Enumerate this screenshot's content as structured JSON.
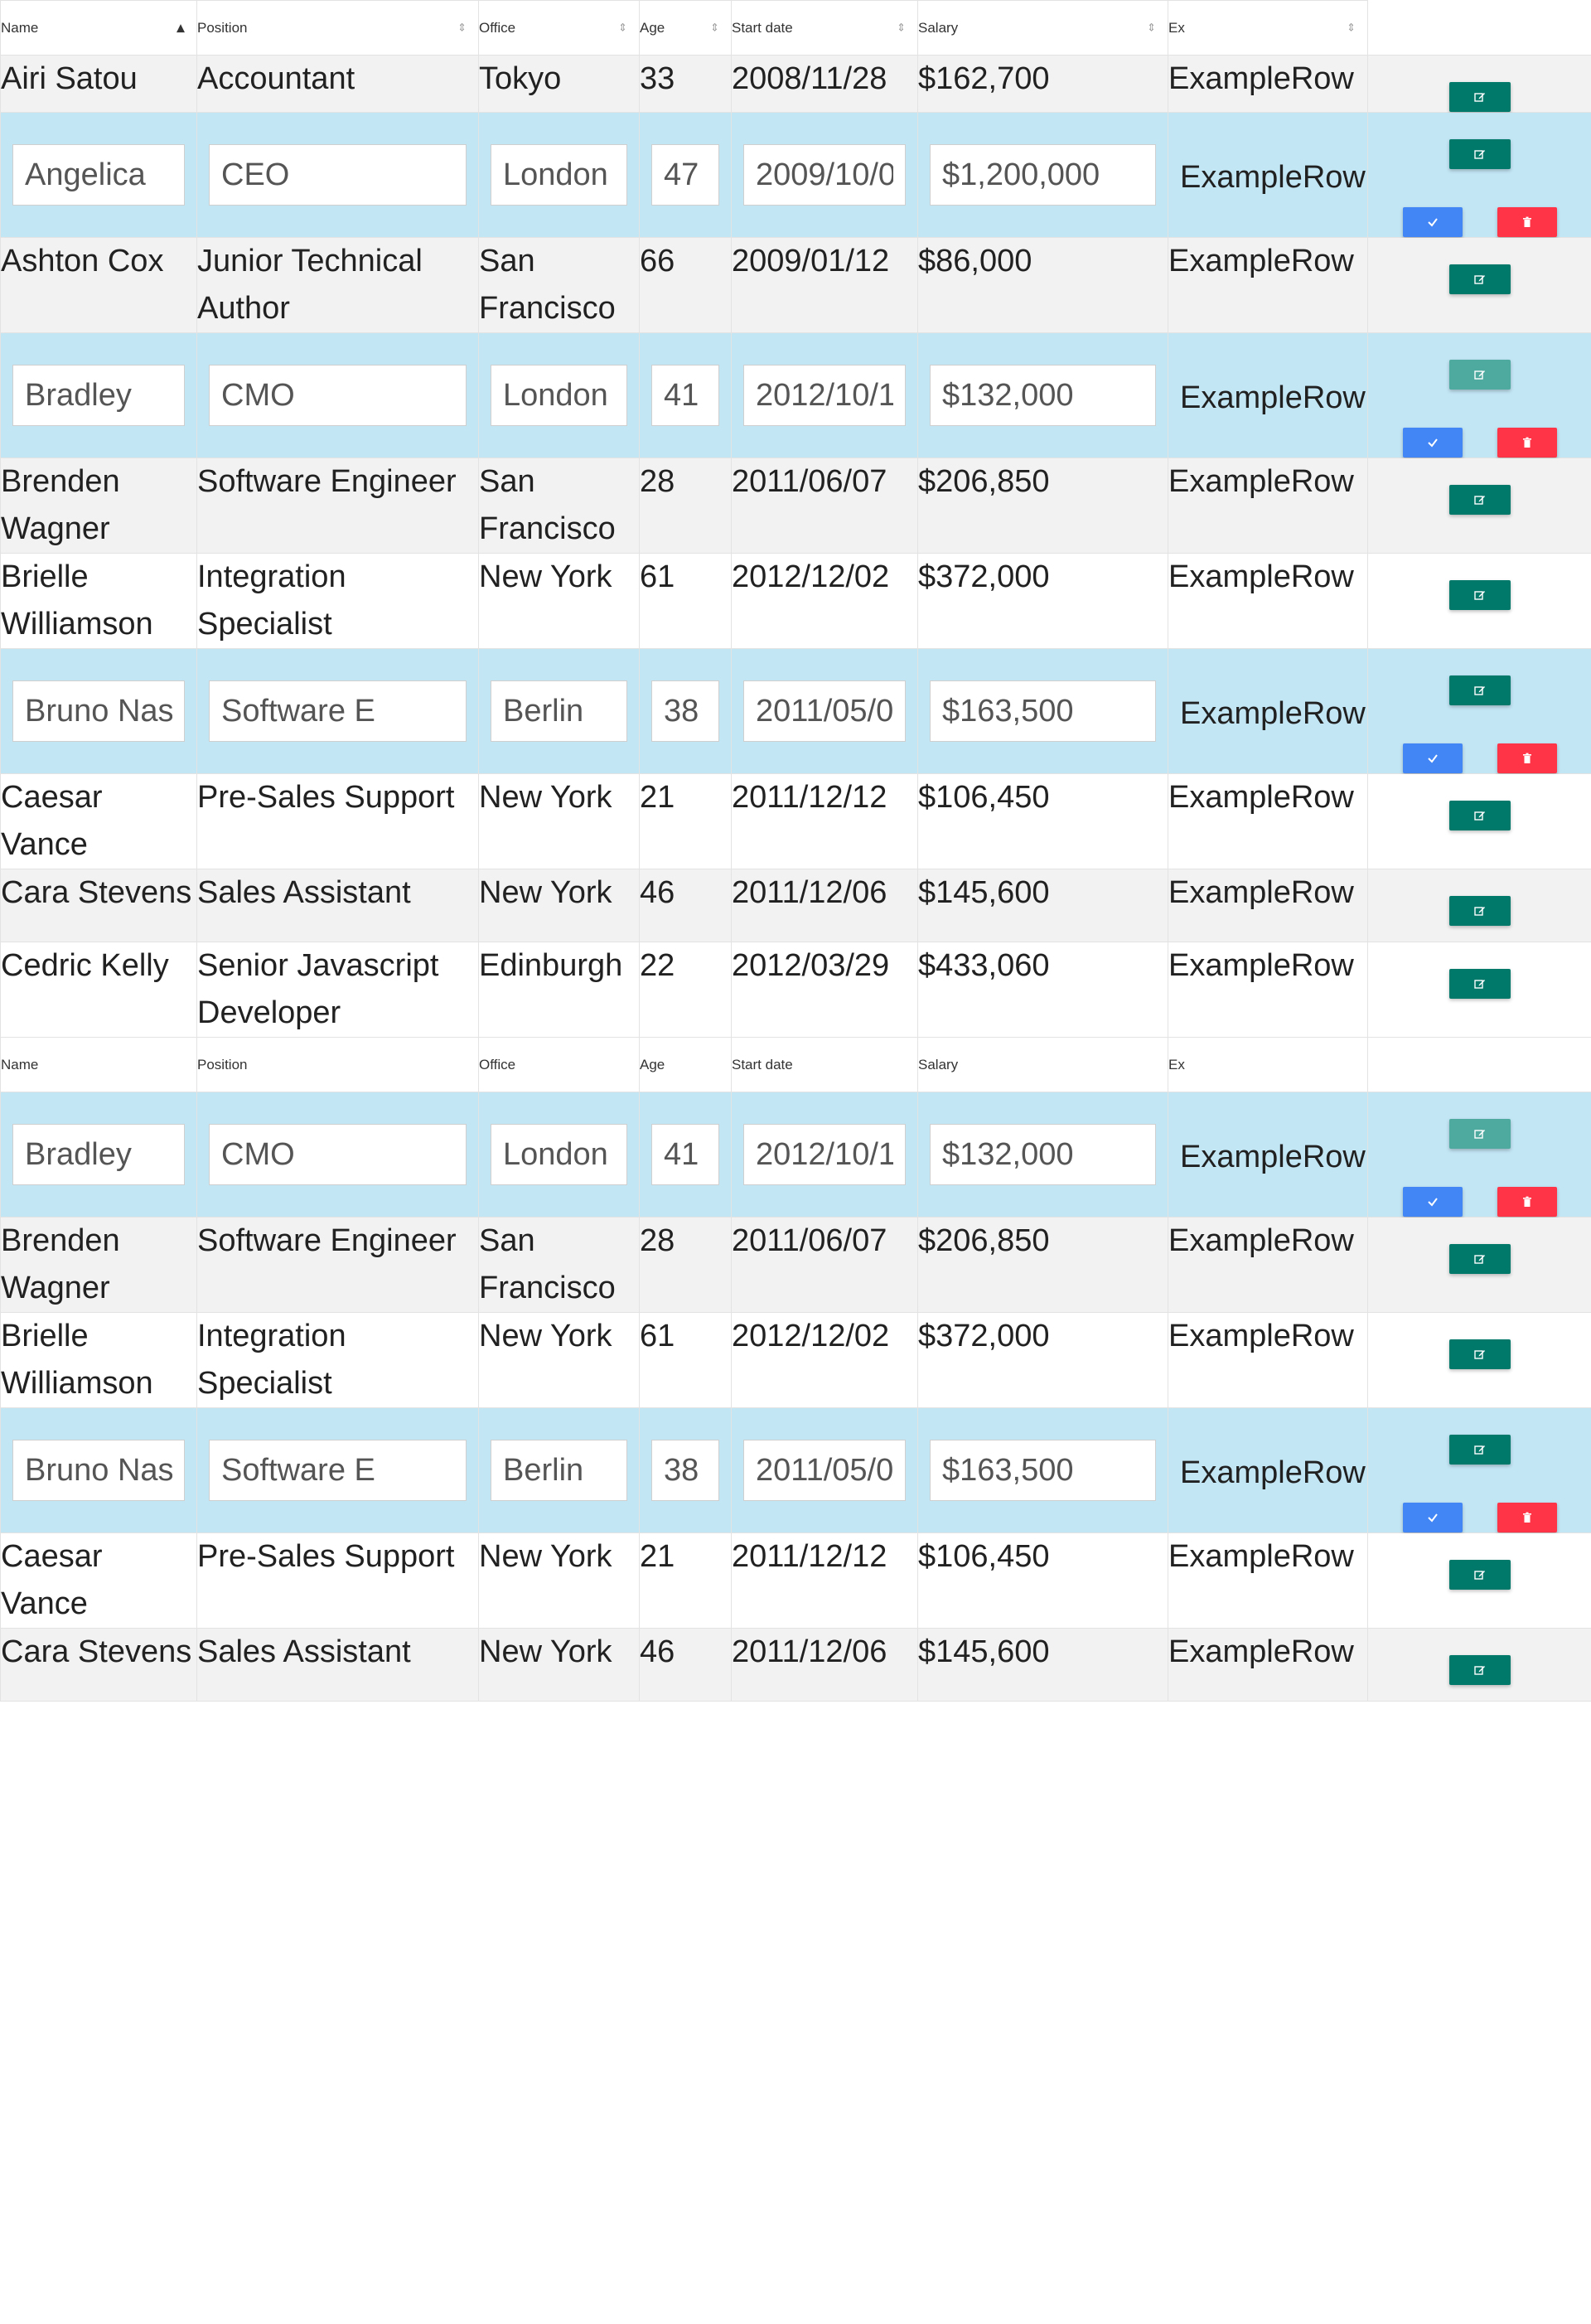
{
  "columns": {
    "name": "Name",
    "position": "Position",
    "office": "Office",
    "age": "Age",
    "start_date": "Start date",
    "salary": "Salary",
    "ex": "Ex"
  },
  "sort": {
    "active_column": "Name",
    "direction": "ascending"
  },
  "colors": {
    "edit_button": "#00796b",
    "save_button": "#4285f4",
    "delete_button": "#ff3547",
    "editing_row_bg": "#c3e6f5",
    "striped_row_bg": "#f2f2f2"
  },
  "icons": {
    "edit": "pencil-square-icon",
    "save": "check-icon",
    "delete": "trash-icon"
  },
  "rows_top": [
    {
      "mode": "view",
      "stripe": "gray",
      "name": "Airi Satou",
      "position": "Accountant",
      "office": "Tokyo",
      "age": "33",
      "start_date": "2008/11/28",
      "salary": "$162,700",
      "ex": "ExampleRow"
    },
    {
      "mode": "edit",
      "name": "Angelica",
      "position": "CEO",
      "office": "London",
      "age": "47",
      "start_date": "2009/10/0",
      "salary": "$1,200,000",
      "ex": "ExampleRow"
    },
    {
      "mode": "view",
      "stripe": "gray",
      "name": "Ashton Cox",
      "position": "Junior Technical Author",
      "office": "San Francisco",
      "age": "66",
      "start_date": "2009/01/12",
      "salary": "$86,000",
      "ex": "ExampleRow"
    },
    {
      "mode": "edit",
      "edit_disabled": true,
      "name": "Bradley",
      "position": "CMO",
      "office": "London",
      "age": "41",
      "start_date": "2012/10/1",
      "salary": "$132,000",
      "ex": "ExampleRow"
    },
    {
      "mode": "view",
      "stripe": "gray",
      "name": "Brenden Wagner",
      "position": "Software Engineer",
      "office": "San Francisco",
      "age": "28",
      "start_date": "2011/06/07",
      "salary": "$206,850",
      "ex": "ExampleRow"
    },
    {
      "mode": "view",
      "stripe": "white",
      "name": "Brielle Williamson",
      "position": "Integration Specialist",
      "office": "New York",
      "age": "61",
      "start_date": "2012/12/02",
      "salary": "$372,000",
      "ex": "ExampleRow"
    },
    {
      "mode": "edit",
      "name": "Bruno Nasl",
      "position": "Software E",
      "office": "Berlin",
      "age": "38",
      "start_date": "2011/05/0",
      "salary": "$163,500",
      "ex": "ExampleRow"
    },
    {
      "mode": "view",
      "stripe": "white",
      "name": "Caesar Vance",
      "position": "Pre-Sales Support",
      "office": "New York",
      "age": "21",
      "start_date": "2011/12/12",
      "salary": "$106,450",
      "ex": "ExampleRow"
    },
    {
      "mode": "view",
      "stripe": "gray",
      "name": "Cara Stevens",
      "position": "Sales Assistant",
      "office": "New York",
      "age": "46",
      "start_date": "2011/12/06",
      "salary": "$145,600",
      "ex": "ExampleRow"
    },
    {
      "mode": "view",
      "stripe": "white",
      "name": "Cedric Kelly",
      "position": "Senior Javascript Developer",
      "office": "Edinburgh",
      "age": "22",
      "start_date": "2012/03/29",
      "salary": "$433,060",
      "ex": "ExampleRow"
    }
  ],
  "rows_bottom": [
    {
      "mode": "edit",
      "edit_disabled": true,
      "name": "Bradley",
      "position": "CMO",
      "office": "London",
      "age": "41",
      "start_date": "2012/10/1",
      "salary": "$132,000",
      "ex": "ExampleRow"
    },
    {
      "mode": "view",
      "stripe": "gray",
      "name": "Brenden Wagner",
      "position": "Software Engineer",
      "office": "San Francisco",
      "age": "28",
      "start_date": "2011/06/07",
      "salary": "$206,850",
      "ex": "ExampleRow"
    },
    {
      "mode": "view",
      "stripe": "white",
      "name": "Brielle Williamson",
      "position": "Integration Specialist",
      "office": "New York",
      "age": "61",
      "start_date": "2012/12/02",
      "salary": "$372,000",
      "ex": "ExampleRow"
    },
    {
      "mode": "edit",
      "name": "Bruno Nasl",
      "position": "Software E",
      "office": "Berlin",
      "age": "38",
      "start_date": "2011/05/0",
      "salary": "$163,500",
      "ex": "ExampleRow"
    },
    {
      "mode": "view",
      "stripe": "white",
      "name": "Caesar Vance",
      "position": "Pre-Sales Support",
      "office": "New York",
      "age": "21",
      "start_date": "2011/12/12",
      "salary": "$106,450",
      "ex": "ExampleRow"
    },
    {
      "mode": "view",
      "stripe": "gray",
      "name": "Cara Stevens",
      "position": "Sales Assistant",
      "office": "New York",
      "age": "46",
      "start_date": "2011/12/06",
      "salary": "$145,600",
      "ex": "ExampleRow"
    }
  ]
}
